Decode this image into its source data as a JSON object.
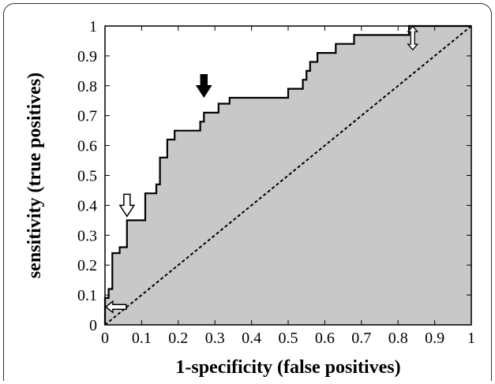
{
  "chart_data": {
    "type": "line",
    "title": "",
    "xlabel": "1-specificity (false positives)",
    "ylabel": "sensitivity (true positives)",
    "xlim": [
      0,
      1
    ],
    "ylim": [
      0,
      1
    ],
    "xticks": [
      "0",
      "0.1",
      "0.2",
      "0.3",
      "0.4",
      "0.5",
      "0.6",
      "0.7",
      "0.8",
      "0.9",
      "1"
    ],
    "yticks": [
      "0",
      "0.1",
      "0.2",
      "0.3",
      "0.4",
      "0.5",
      "0.6",
      "0.7",
      "0.8",
      "0.9",
      "1"
    ],
    "grid": false,
    "area_under_curve_shaded": true,
    "series": [
      {
        "style": "solid step curve",
        "x": [
          0,
          0,
          0.01,
          0.01,
          0.02,
          0.02,
          0.04,
          0.04,
          0.06,
          0.06,
          0.11,
          0.11,
          0.14,
          0.14,
          0.15,
          0.15,
          0.17,
          0.17,
          0.19,
          0.19,
          0.21,
          0.21,
          0.23,
          0.23,
          0.26,
          0.26,
          0.27,
          0.27,
          0.31,
          0.31,
          0.34,
          0.34,
          0.5,
          0.5,
          0.54,
          0.54,
          0.55,
          0.55,
          0.56,
          0.56,
          0.57,
          0.57,
          0.58,
          0.58,
          0.63,
          0.63,
          0.68,
          0.68,
          0.75,
          0.75,
          0.83,
          0.83,
          0.84,
          0.84,
          1
        ],
        "y": [
          0,
          0.09,
          0.09,
          0.12,
          0.12,
          0.24,
          0.24,
          0.26,
          0.26,
          0.35,
          0.35,
          0.44,
          0.44,
          0.47,
          0.47,
          0.56,
          0.56,
          0.62,
          0.62,
          0.65,
          0.65,
          0.65,
          0.65,
          0.65,
          0.65,
          0.68,
          0.68,
          0.71,
          0.71,
          0.74,
          0.74,
          0.76,
          0.76,
          0.79,
          0.79,
          0.82,
          0.82,
          0.85,
          0.85,
          0.88,
          0.88,
          0.88,
          0.88,
          0.91,
          0.91,
          0.94,
          0.94,
          0.97,
          0.97,
          0.97,
          0.97,
          1.0,
          1.0,
          1.0,
          1.0
        ]
      },
      {
        "style": "dashed diagonal",
        "x": [
          0,
          1
        ],
        "y": [
          0,
          1
        ]
      }
    ],
    "annotations": [
      {
        "shape": "open arrow pointing left",
        "x": 0.03,
        "y": 0.06
      },
      {
        "shape": "open arrow pointing down",
        "x": 0.06,
        "y": 0.4
      },
      {
        "shape": "filled arrow pointing down",
        "x": 0.27,
        "y": 0.8
      },
      {
        "shape": "open double arrow (up/down)",
        "x": 0.84,
        "y": 0.96
      }
    ],
    "colors": {
      "fill": "#c8c8c8",
      "curve": "#000000",
      "diagonal": "#000000",
      "background": "#ffffff"
    }
  }
}
